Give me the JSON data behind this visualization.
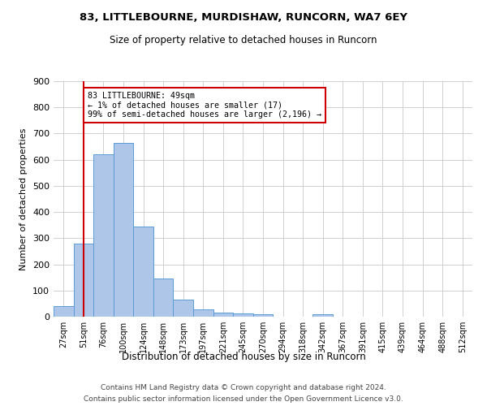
{
  "title1": "83, LITTLEBOURNE, MURDISHAW, RUNCORN, WA7 6EY",
  "title2": "Size of property relative to detached houses in Runcorn",
  "xlabel": "Distribution of detached houses by size in Runcorn",
  "ylabel": "Number of detached properties",
  "categories": [
    "27sqm",
    "51sqm",
    "76sqm",
    "100sqm",
    "124sqm",
    "148sqm",
    "173sqm",
    "197sqm",
    "221sqm",
    "245sqm",
    "270sqm",
    "294sqm",
    "318sqm",
    "342sqm",
    "367sqm",
    "391sqm",
    "415sqm",
    "439sqm",
    "464sqm",
    "488sqm",
    "512sqm"
  ],
  "values": [
    40,
    278,
    620,
    665,
    345,
    145,
    65,
    28,
    15,
    12,
    10,
    0,
    0,
    8,
    0,
    0,
    0,
    0,
    0,
    0,
    0
  ],
  "bar_color": "#aec6e8",
  "bar_edge_color": "#5b9bd5",
  "annotation_text": "83 LITTLEBOURNE: 49sqm\n← 1% of detached houses are smaller (17)\n99% of semi-detached houses are larger (2,196) →",
  "annotation_box_color": "#ffffff",
  "annotation_box_edge_color": "#cc0000",
  "vline_x": 1,
  "vline_color": "#cc0000",
  "ylim": [
    0,
    900
  ],
  "yticks": [
    0,
    100,
    200,
    300,
    400,
    500,
    600,
    700,
    800,
    900
  ],
  "footer1": "Contains HM Land Registry data © Crown copyright and database right 2024.",
  "footer2": "Contains public sector information licensed under the Open Government Licence v3.0.",
  "background_color": "#ffffff",
  "grid_color": "#d0d0d0"
}
